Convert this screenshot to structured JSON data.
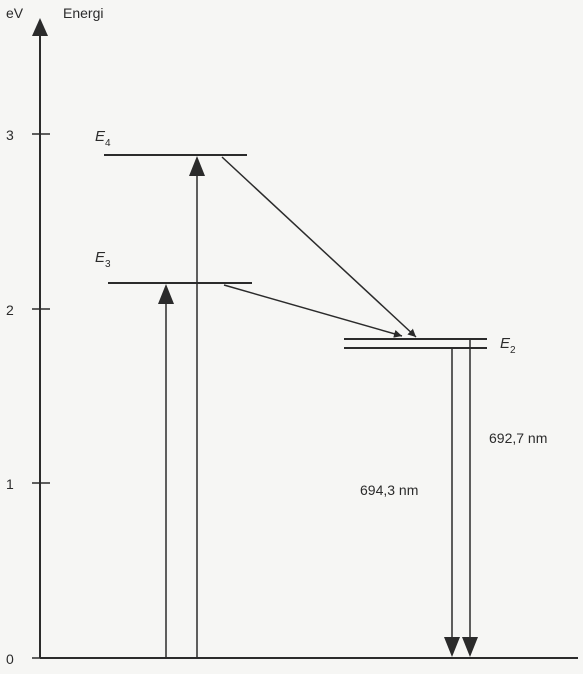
{
  "axis": {
    "unit": "eV",
    "label": "Energi",
    "ticks": [
      "0",
      "1",
      "2",
      "3"
    ]
  },
  "levels": [
    {
      "symbol": "E",
      "subscript": "4",
      "energy_ev": 2.9
    },
    {
      "symbol": "E",
      "subscript": "3",
      "energy_ev": 2.15
    },
    {
      "symbol": "E",
      "subscript": "2",
      "energy_ev": 1.8
    }
  ],
  "transitions": {
    "wavelength_1": "694,3 nm",
    "wavelength_2": "692,7 nm"
  },
  "colors": {
    "line": "#2b2b2b",
    "background": "#f6f6f4"
  }
}
